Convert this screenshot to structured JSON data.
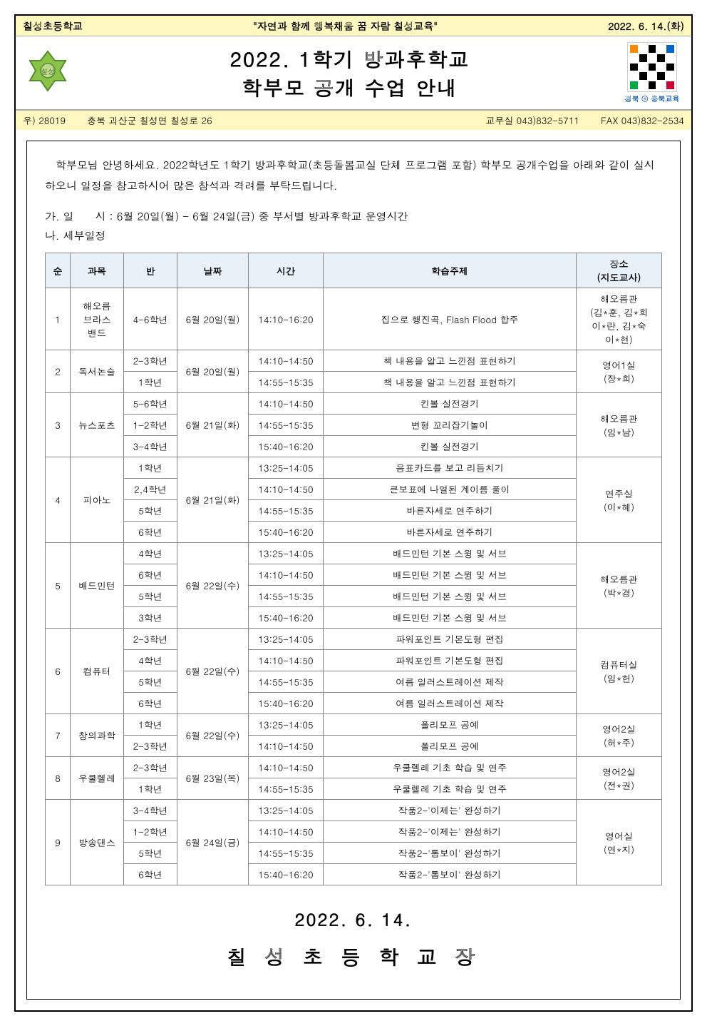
{
  "header": {
    "school": "칠성초등학교",
    "motto": "\"자연과 함께 행복채움 꿈 자람 칠성교육\"",
    "date": "2022. 6. 14.(화)",
    "title1": "2022. 1학기 방과후학교",
    "title2": "학부모 공개 수업 안내",
    "qr_label": "경북 ⓔ 충북교육"
  },
  "addr": {
    "post": "우) 28019",
    "address": "충북 괴산군 칠성면 칠성로 26",
    "office": "교무실 043)832-5711",
    "fax": "FAX 043)832-2534"
  },
  "intro": "학부모님 안녕하세요. 2022학년도 1학기 방과후학교(초등돌봄교실 단체 프로그램 포함) 학부모 공개수업을 아래와 같이 실시하오니 일정을 참고하시어 많은 참석과 격려를 부탁드립니다.",
  "schedule_header_a": "가. 일　　시 : 6월 20일(월) - 6월 24일(금) 중 부서별 방과후학교 운영시간",
  "schedule_header_b": "나. 세부일정",
  "table": {
    "headers": [
      "순",
      "과목",
      "반",
      "날짜",
      "시간",
      "학습주제",
      "장소\n(지도교사)"
    ],
    "groups": [
      {
        "no": "1",
        "subject": "해오름\n브라스\n밴드",
        "date": "6월 20일(월)",
        "location": "해오름관\n(김*훈, 김*희\n이*란, 김*숙\n이*현)",
        "rows": [
          {
            "class": "4-6학년",
            "time": "14:10-16:20",
            "topic": "집으로 행진곡, Flash Flood 합주"
          }
        ]
      },
      {
        "no": "2",
        "subject": "독서논술",
        "date": "6월 20일(월)",
        "location": "영어1실\n(장*희)",
        "rows": [
          {
            "class": "2-3학년",
            "time": "14:10-14:50",
            "topic": "책 내용을 알고 느낀점 표현하기"
          },
          {
            "class": "1학년",
            "time": "14:55-15:35",
            "topic": "책 내용을 알고 느낀점 표현하기"
          }
        ]
      },
      {
        "no": "3",
        "subject": "뉴스포츠",
        "date": "6월 21일(화)",
        "location": "해오름관\n(임*남)",
        "rows": [
          {
            "class": "5-6학년",
            "time": "14:10-14:50",
            "topic": "킨볼 실전경기"
          },
          {
            "class": "1-2학년",
            "time": "14:55-15:35",
            "topic": "변형 꼬리잡기놀이"
          },
          {
            "class": "3-4학년",
            "time": "15:40-16:20",
            "topic": "킨볼 실전경기"
          }
        ]
      },
      {
        "no": "4",
        "subject": "피아노",
        "date": "6월 21일(화)",
        "location": "연주실\n(이*혜)",
        "rows": [
          {
            "class": "1학년",
            "time": "13:25-14:05",
            "topic": "음표카드를 보고 리듬치기"
          },
          {
            "class": "2,4학년",
            "time": "14:10-14:50",
            "topic": "큰보표에 나열된 계이름 풀이"
          },
          {
            "class": "5학년",
            "time": "14:55-15:35",
            "topic": "바른자세로 연주하기"
          },
          {
            "class": "6학년",
            "time": "15:40-16:20",
            "topic": "바른자세로 연주하기"
          }
        ]
      },
      {
        "no": "5",
        "subject": "배드민턴",
        "date": "6월 22일(수)",
        "location": "해오름관\n(박*경)",
        "rows": [
          {
            "class": "4학년",
            "time": "13:25-14:05",
            "topic": "배드민턴 기본 스윙 및 서브"
          },
          {
            "class": "6학년",
            "time": "14:10-14:50",
            "topic": "배드민턴 기본 스윙 및 서브"
          },
          {
            "class": "5학년",
            "time": "14:55-15:35",
            "topic": "배드민턴 기본 스윙 및 서브"
          },
          {
            "class": "3학년",
            "time": "15:40-16:20",
            "topic": "배드민턴 기본 스윙 및 서브"
          }
        ]
      },
      {
        "no": "6",
        "subject": "컴퓨터",
        "date": "6월 22일(수)",
        "location": "컴퓨터실\n(임*헌)",
        "rows": [
          {
            "class": "2-3학년",
            "time": "13:25-14:05",
            "topic": "파워포인트 기본도형 편집"
          },
          {
            "class": "4학년",
            "time": "14:10-14:50",
            "topic": "파워포인트 기본도형 편집"
          },
          {
            "class": "5학년",
            "time": "14:55-15:35",
            "topic": "여름 일러스트레이션 제작"
          },
          {
            "class": "6학년",
            "time": "15:40-16:20",
            "topic": "여름 일러스트레이션 제작"
          }
        ]
      },
      {
        "no": "7",
        "subject": "창의과학",
        "date": "6월 22일(수)",
        "location": "영어2실\n(허*주)",
        "rows": [
          {
            "class": "1학년",
            "time": "13:25-14:05",
            "topic": "폴리모프 공예"
          },
          {
            "class": "2-3학년",
            "time": "14:10-14:50",
            "topic": "폴리모프 공예"
          }
        ]
      },
      {
        "no": "8",
        "subject": "우쿨렐레",
        "date": "6월 23일(목)",
        "location": "영어2실\n(전*권)",
        "rows": [
          {
            "class": "2-3학년",
            "time": "14:10-14:50",
            "topic": "우쿨렐레 기초 학습 및 연주"
          },
          {
            "class": "1학년",
            "time": "14:55-15:35",
            "topic": "우쿨렐레 기초 학습 및 연주"
          }
        ]
      },
      {
        "no": "9",
        "subject": "방송댄스",
        "date": "6월 24일(금)",
        "location": "영어실\n(연*지)",
        "rows": [
          {
            "class": "3-4학년",
            "time": "13:25-14:05",
            "topic": "작품2-'이제는' 완성하기"
          },
          {
            "class": "1-2학년",
            "time": "14:10-14:50",
            "topic": "작품2-'이제는' 완성하기"
          },
          {
            "class": "5학년",
            "time": "14:55-15:35",
            "topic": "작품2-'톰보이' 완성하기"
          },
          {
            "class": "6학년",
            "time": "15:40-16:20",
            "topic": "작품2-'톰보이' 완성하기"
          }
        ]
      }
    ]
  },
  "footer": {
    "date": "2022. 6. 14.",
    "sign": "칠 성 초 등 학 교 장"
  },
  "colors": {
    "header_bg": "#fef7c0",
    "table_header_bg": "#e8f0f8",
    "border": "#888888"
  }
}
